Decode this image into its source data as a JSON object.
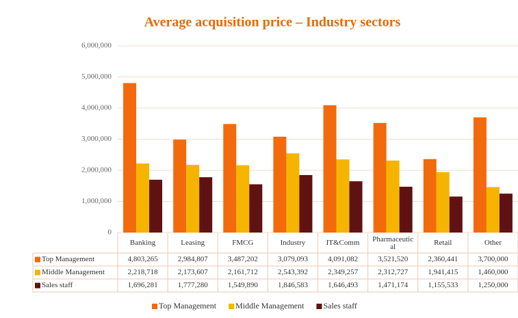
{
  "chart_data": {
    "type": "bar",
    "title": "Average acquisition price – Industry sectors",
    "categories": [
      "Banking",
      "Leasing",
      "FMCG",
      "Industry",
      "IT&Comm",
      "Pharmaceutical",
      "Retail",
      "Other"
    ],
    "series": [
      {
        "name": "Top Management",
        "color": "#f26a0c",
        "values": [
          4803265,
          2984807,
          3487202,
          3079093,
          4091082,
          3521520,
          2360441,
          3700000
        ],
        "value_labels": [
          "4,803,265",
          "2,984,807",
          "3,487,202",
          "3,079,093",
          "4,091,082",
          "3,521,520",
          "2,360,441",
          "3,700,000"
        ]
      },
      {
        "name": "Middle Management",
        "color": "#f5b400",
        "values": [
          2218718,
          2173607,
          2161712,
          2543392,
          2349257,
          2312727,
          1941415,
          1460000
        ],
        "value_labels": [
          "2,218,718",
          "2,173,607",
          "2,161,712",
          "2,543,392",
          "2,349,257",
          "2,312,727",
          "1,941,415",
          "1,460,000"
        ]
      },
      {
        "name": "Sales staff",
        "color": "#5e1212",
        "values": [
          1696281,
          1777280,
          1549890,
          1846583,
          1646493,
          1471174,
          1155533,
          1250000
        ],
        "value_labels": [
          "1,696,281",
          "1,777,280",
          "1,549,890",
          "1,846,583",
          "1,646,493",
          "1,471,174",
          "1,155,533",
          "1,250,000"
        ]
      }
    ],
    "ylim": [
      0,
      6000000
    ],
    "yticks": [
      0,
      {
        "value": 1000000,
        "label": "1,000,000"
      },
      {
        "value": 2000000,
        "label": "2,000,000"
      },
      {
        "value": 3000000,
        "label": "3,000,000"
      },
      {
        "value": 4000000,
        "label": "4,000,000"
      },
      {
        "value": 5000000,
        "label": "5,000,000"
      },
      {
        "value": 6000000,
        "label": "6,000,000"
      }
    ],
    "grid": true,
    "legend": "bottom"
  }
}
